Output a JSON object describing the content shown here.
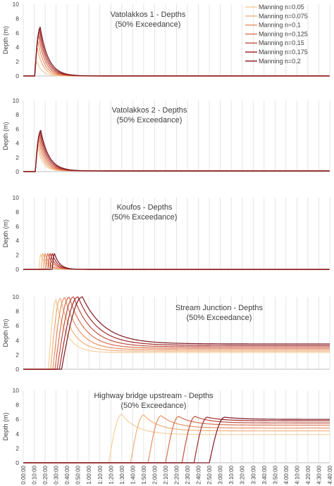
{
  "colors": {
    "gridline": "#d9d9d9",
    "axis": "#bfbfbf",
    "text": "#404040",
    "series": [
      "#f5cf9c",
      "#f0b07c",
      "#e99065",
      "#d9704e",
      "#c24e3c",
      "#a02b2d",
      "#7d1620"
    ]
  },
  "legend": {
    "placement": "top-right",
    "entries": [
      "Manning n=0.05",
      "Manning n=0.075",
      "Manning n=0.1",
      "Manning n=0.125",
      "Manning n=0.15",
      "Manning n=0.175",
      "Manning n=0.2"
    ]
  },
  "x_axis": {
    "ticks": [
      "0:00:00",
      "0:10:00",
      "0:20:00",
      "0:30:00",
      "0:40:00",
      "0:50:00",
      "1:00:00",
      "1:10:00",
      "1:20:00",
      "1:30:00",
      "1:40:00",
      "1:50:00",
      "2:00:00",
      "2:10:00",
      "2:20:00",
      "2:30:00",
      "2:40:00",
      "2:50:00",
      "3:00:00",
      "3:10:00",
      "3:20:00",
      "3:30:00",
      "3:40:00",
      "3:50:00",
      "4:00:00",
      "4:10:00",
      "4:20:00",
      "4:30:00",
      "4:40:00"
    ],
    "range_minutes": [
      0,
      280
    ]
  },
  "chart_data": [
    {
      "type": "line",
      "title": "Vatolakkos 1  - Depths",
      "subtitle": "(50% Exceedance)",
      "ylabel": "Depth  (m)",
      "ylim": [
        0,
        10
      ],
      "yticks": [
        "0",
        "2",
        "4",
        "6",
        "8",
        "10"
      ],
      "grid": true,
      "x_units": "minutes",
      "series": [
        {
          "name": "Manning n=0.05",
          "rise_min": 10.5,
          "peak_min": 12.5,
          "peak_depth": 2.0,
          "end_depth": 0.0
        },
        {
          "name": "Manning n=0.075",
          "rise_min": 10.5,
          "peak_min": 13.0,
          "peak_depth": 3.8,
          "end_depth": 0.0
        },
        {
          "name": "Manning n=0.1",
          "rise_min": 10.5,
          "peak_min": 13.5,
          "peak_depth": 4.8,
          "end_depth": 0.0
        },
        {
          "name": "Manning n=0.125",
          "rise_min": 10.5,
          "peak_min": 14.0,
          "peak_depth": 5.6,
          "end_depth": 0.0
        },
        {
          "name": "Manning n=0.15",
          "rise_min": 10.5,
          "peak_min": 14.5,
          "peak_depth": 6.1,
          "end_depth": 0.0
        },
        {
          "name": "Manning n=0.175",
          "rise_min": 10.5,
          "peak_min": 15.0,
          "peak_depth": 6.5,
          "end_depth": 0.0
        },
        {
          "name": "Manning n=0.2",
          "rise_min": 10.5,
          "peak_min": 15.5,
          "peak_depth": 6.8,
          "end_depth": 0.0
        }
      ]
    },
    {
      "type": "line",
      "title": "Vatolakkos 2  - Depths",
      "subtitle": "(50% Exceedance)",
      "ylabel": "Depth  (m)",
      "ylim": [
        0,
        10
      ],
      "yticks": [
        "0",
        "2",
        "4",
        "6",
        "8",
        "10"
      ],
      "grid": true,
      "x_units": "minutes",
      "series": [
        {
          "name": "Manning n=0.05",
          "rise_min": 11.0,
          "peak_min": 13.0,
          "peak_depth": 3.5,
          "end_depth": 0.1
        },
        {
          "name": "Manning n=0.075",
          "rise_min": 11.0,
          "peak_min": 13.5,
          "peak_depth": 4.0,
          "end_depth": 0.1
        },
        {
          "name": "Manning n=0.1",
          "rise_min": 11.0,
          "peak_min": 14.0,
          "peak_depth": 4.5,
          "end_depth": 0.1
        },
        {
          "name": "Manning n=0.125",
          "rise_min": 11.0,
          "peak_min": 14.5,
          "peak_depth": 4.9,
          "end_depth": 0.1
        },
        {
          "name": "Manning n=0.15",
          "rise_min": 11.0,
          "peak_min": 15.0,
          "peak_depth": 5.3,
          "end_depth": 0.1
        },
        {
          "name": "Manning n=0.175",
          "rise_min": 11.0,
          "peak_min": 15.5,
          "peak_depth": 5.6,
          "end_depth": 0.1
        },
        {
          "name": "Manning n=0.2",
          "rise_min": 11.0,
          "peak_min": 16.0,
          "peak_depth": 5.8,
          "end_depth": 0.1
        }
      ]
    },
    {
      "type": "line",
      "title": "Koufos  - Depths",
      "subtitle": "(50% Exceedance)",
      "ylabel": "Depth  (m)",
      "ylim": [
        0,
        10
      ],
      "yticks": [
        "0",
        "2",
        "4",
        "6",
        "8",
        "10"
      ],
      "grid": true,
      "x_units": "minutes",
      "series": [
        {
          "name": "Manning n=0.05",
          "rise_min": 14.5,
          "peak_min": 16.0,
          "peak_depth": 2.1,
          "end_depth": 0.0
        },
        {
          "name": "Manning n=0.075",
          "rise_min": 16.5,
          "peak_min": 18.0,
          "peak_depth": 2.2,
          "end_depth": 0.0
        },
        {
          "name": "Manning n=0.1",
          "rise_min": 18.5,
          "peak_min": 20.0,
          "peak_depth": 2.2,
          "end_depth": 0.0
        },
        {
          "name": "Manning n=0.125",
          "rise_min": 20.5,
          "peak_min": 22.5,
          "peak_depth": 2.2,
          "end_depth": 0.0
        },
        {
          "name": "Manning n=0.15",
          "rise_min": 22.5,
          "peak_min": 24.5,
          "peak_depth": 2.2,
          "end_depth": 0.0
        },
        {
          "name": "Manning n=0.175",
          "rise_min": 24.5,
          "peak_min": 26.5,
          "peak_depth": 2.2,
          "end_depth": 0.0
        },
        {
          "name": "Manning n=0.2",
          "rise_min": 26.5,
          "peak_min": 28.5,
          "peak_depth": 2.2,
          "end_depth": 0.0
        }
      ]
    },
    {
      "type": "line",
      "title": "Stream Junction  - Depths",
      "subtitle": "(50% Exceedance)",
      "ylabel": "Depth  (m)",
      "ylim": [
        0,
        10
      ],
      "yticks": [
        "0",
        "2",
        "4",
        "6",
        "8",
        "10"
      ],
      "grid": true,
      "x_units": "minutes",
      "series": [
        {
          "name": "Manning n=0.05",
          "rise_min": 23.0,
          "peak_min": 30.0,
          "peak_depth": 9.6,
          "end_depth": 2.3
        },
        {
          "name": "Manning n=0.075",
          "rise_min": 25.0,
          "peak_min": 34.0,
          "peak_depth": 9.8,
          "end_depth": 2.5
        },
        {
          "name": "Manning n=0.1",
          "rise_min": 27.0,
          "peak_min": 38.0,
          "peak_depth": 9.9,
          "end_depth": 2.7
        },
        {
          "name": "Manning n=0.125",
          "rise_min": 29.0,
          "peak_min": 42.0,
          "peak_depth": 9.95,
          "end_depth": 2.9
        },
        {
          "name": "Manning n=0.15",
          "rise_min": 31.0,
          "peak_min": 46.0,
          "peak_depth": 10.0,
          "end_depth": 3.1
        },
        {
          "name": "Manning n=0.175",
          "rise_min": 33.0,
          "peak_min": 50.0,
          "peak_depth": 10.0,
          "end_depth": 3.3
        },
        {
          "name": "Manning n=0.2",
          "rise_min": 35.0,
          "peak_min": 54.0,
          "peak_depth": 10.0,
          "end_depth": 3.5
        }
      ]
    },
    {
      "type": "line",
      "title": "Highway bridge upstream  - Depths",
      "subtitle": "(50% Exceedance)",
      "ylabel": "Depth  (m)",
      "ylim": [
        0,
        10
      ],
      "yticks": [
        "0",
        "2",
        "4",
        "6",
        "8",
        "10"
      ],
      "grid": true,
      "x_units": "minutes",
      "series": [
        {
          "name": "Manning n=0.05",
          "rise_min": 78.0,
          "peak_min": 90.0,
          "peak_depth": 6.7,
          "end_depth": 3.9
        },
        {
          "name": "Manning n=0.075",
          "rise_min": 98.0,
          "peak_min": 110.0,
          "peak_depth": 6.6,
          "end_depth": 4.4
        },
        {
          "name": "Manning n=0.1",
          "rise_min": 114.0,
          "peak_min": 126.0,
          "peak_depth": 6.5,
          "end_depth": 4.8
        },
        {
          "name": "Manning n=0.125",
          "rise_min": 130.0,
          "peak_min": 142.0,
          "peak_depth": 6.4,
          "end_depth": 5.2
        },
        {
          "name": "Manning n=0.15",
          "rise_min": 145.0,
          "peak_min": 157.0,
          "peak_depth": 6.4,
          "end_depth": 5.5
        },
        {
          "name": "Manning n=0.175",
          "rise_min": 156.0,
          "peak_min": 168.0,
          "peak_depth": 6.3,
          "end_depth": 5.8
        },
        {
          "name": "Manning n=0.2",
          "rise_min": 170.0,
          "peak_min": 184.0,
          "peak_depth": 6.3,
          "end_depth": 6.0
        }
      ]
    }
  ]
}
